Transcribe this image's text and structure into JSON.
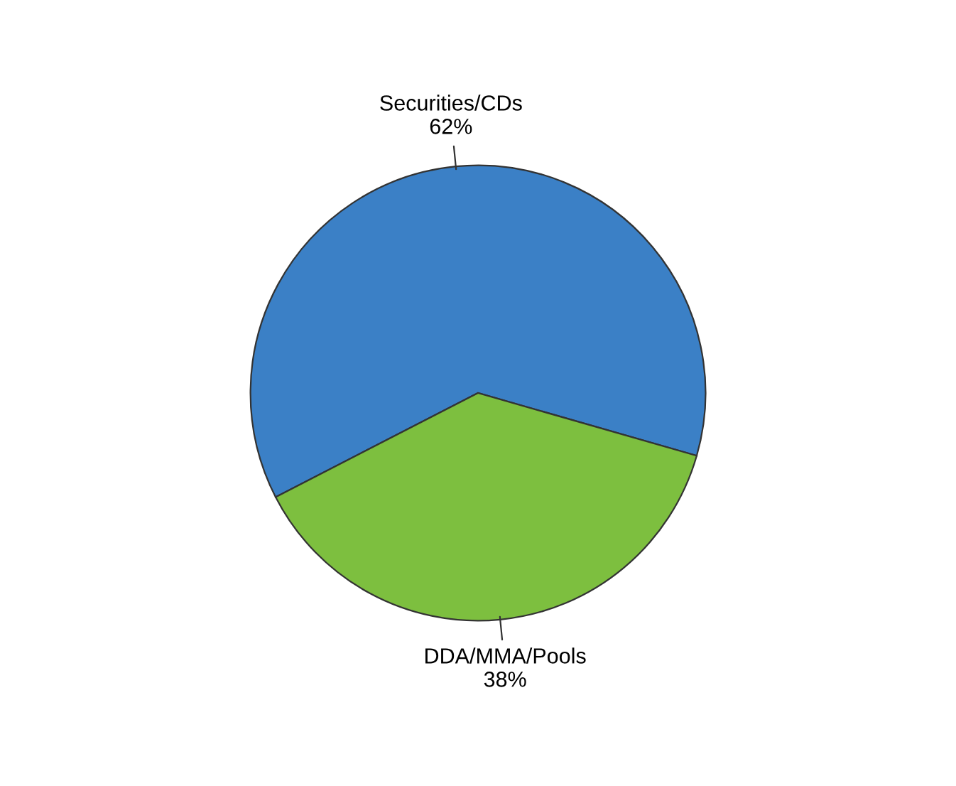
{
  "chart_data": {
    "type": "pie",
    "categories": [
      "Securities/CDs",
      "DDA/MMA/Pools"
    ],
    "values": [
      62,
      38
    ],
    "value_labels": [
      "62%",
      "38%"
    ],
    "colors": [
      "#3b80c6",
      "#7dbf3f"
    ]
  }
}
